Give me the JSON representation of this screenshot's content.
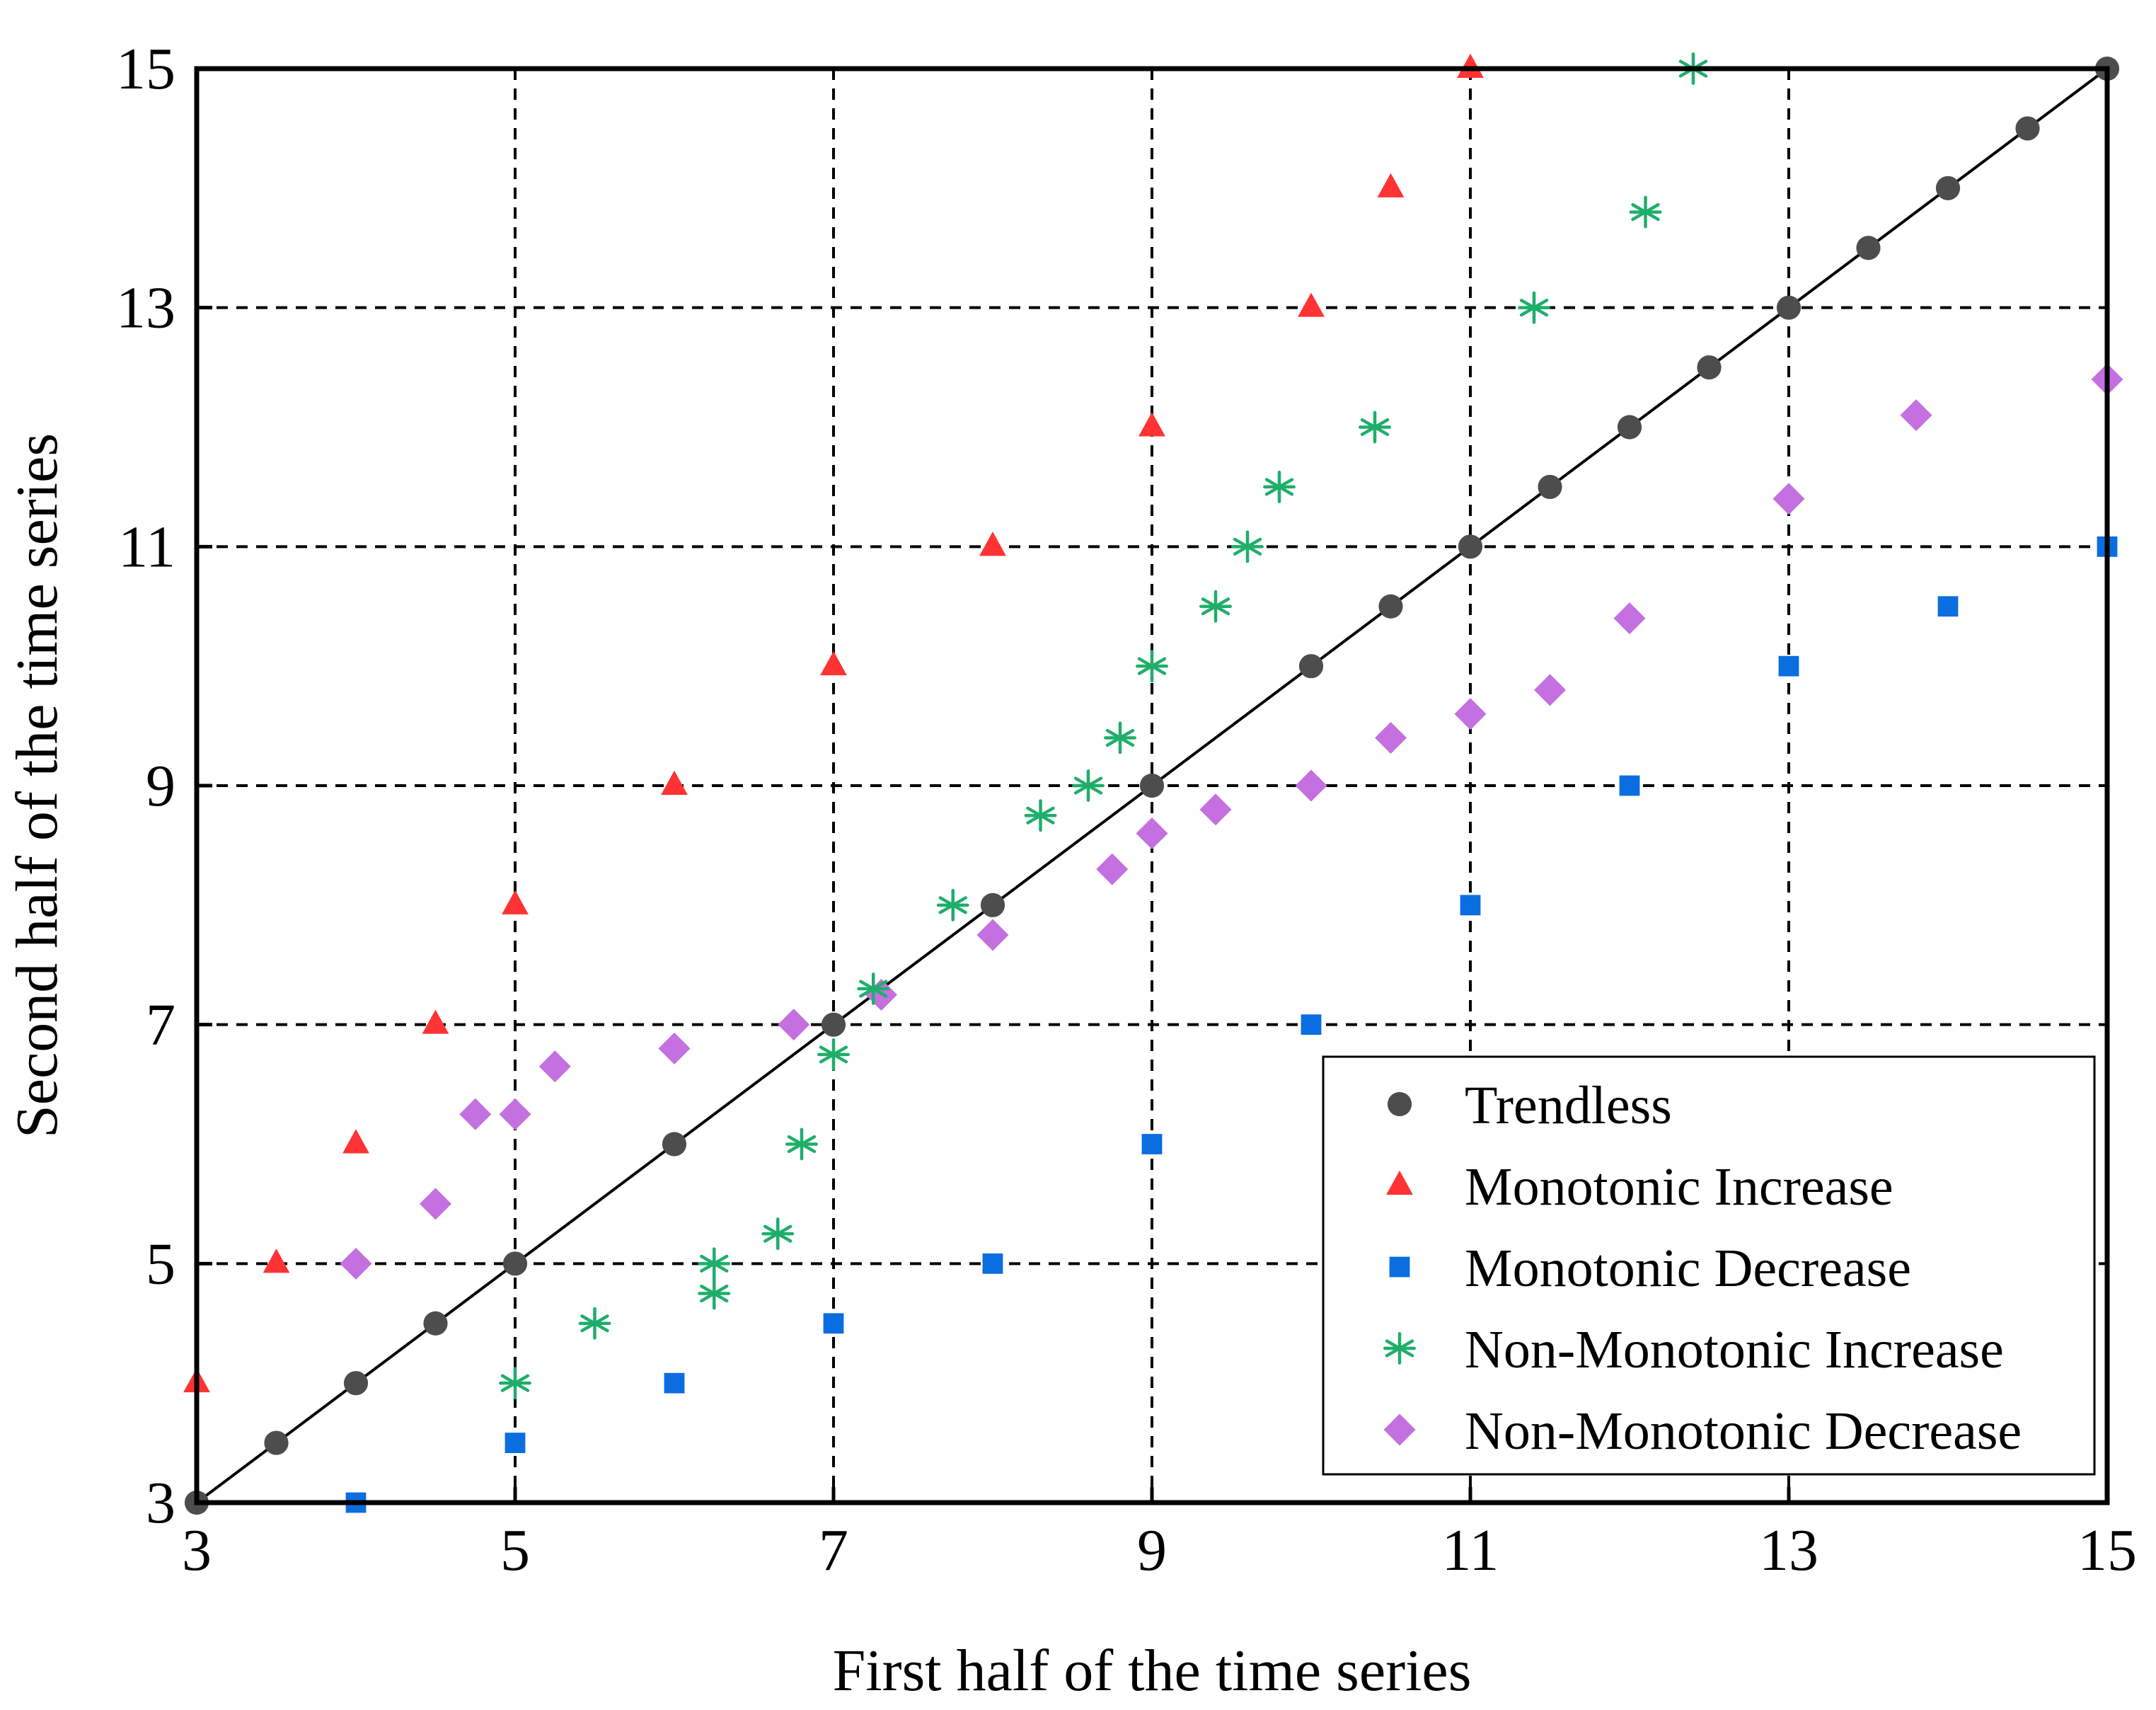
{
  "chart_data": {
    "type": "scatter",
    "title": "",
    "xlabel": "First half of the time series",
    "ylabel": "Second half of the time series",
    "xlim": [
      3,
      15
    ],
    "ylim": [
      3,
      15
    ],
    "xticks": [
      3,
      5,
      7,
      9,
      11,
      13,
      15
    ],
    "yticks": [
      3,
      5,
      7,
      9,
      11,
      13,
      15
    ],
    "grid": true,
    "grid_style": "dashed",
    "reference_line": {
      "from": [
        3,
        3
      ],
      "to": [
        15,
        15
      ]
    },
    "legend": {
      "position": "lower-right"
    },
    "series": [
      {
        "name": "Trendless",
        "marker": "circle",
        "color": "#4d4d4d",
        "points": [
          [
            3,
            3
          ],
          [
            3.5,
            3.5
          ],
          [
            4,
            4
          ],
          [
            4.5,
            4.5
          ],
          [
            5,
            5
          ],
          [
            6,
            6
          ],
          [
            7,
            7
          ],
          [
            8,
            8
          ],
          [
            9,
            9
          ],
          [
            10,
            10
          ],
          [
            10.5,
            10.5
          ],
          [
            11,
            11
          ],
          [
            11.5,
            11.5
          ],
          [
            12,
            12
          ],
          [
            12.5,
            12.5
          ],
          [
            13,
            13
          ],
          [
            13.5,
            13.5
          ],
          [
            14,
            14
          ],
          [
            14.5,
            14.5
          ],
          [
            15,
            15
          ]
        ]
      },
      {
        "name": "Monotonic Increase",
        "marker": "triangle",
        "color": "#ff3333",
        "points": [
          [
            3,
            4
          ],
          [
            3.5,
            5
          ],
          [
            4,
            6
          ],
          [
            4.5,
            7
          ],
          [
            5,
            8
          ],
          [
            6,
            9
          ],
          [
            7,
            10
          ],
          [
            8,
            11
          ],
          [
            9,
            12
          ],
          [
            10,
            13
          ],
          [
            10.5,
            14
          ],
          [
            11,
            15
          ]
        ]
      },
      {
        "name": "Monotonic Decrease",
        "marker": "square",
        "color": "#0a6ee0",
        "points": [
          [
            4,
            3
          ],
          [
            5,
            3.5
          ],
          [
            6,
            4
          ],
          [
            7,
            4.5
          ],
          [
            8,
            5
          ],
          [
            9,
            6
          ],
          [
            10,
            7
          ],
          [
            11,
            8
          ],
          [
            12,
            9
          ],
          [
            13,
            10
          ],
          [
            14,
            10.5
          ],
          [
            15,
            11
          ]
        ]
      },
      {
        "name": "Non-Monotonic Increase",
        "marker": "asterisk",
        "color": "#1fae6a",
        "points": [
          [
            5,
            4
          ],
          [
            5.5,
            4.5
          ],
          [
            6.25,
            5
          ],
          [
            6.25,
            4.75
          ],
          [
            6.65,
            5.25
          ],
          [
            6.8,
            6
          ],
          [
            7,
            6.75
          ],
          [
            7.25,
            7.3
          ],
          [
            7.75,
            8
          ],
          [
            8.3,
            8.75
          ],
          [
            8.6,
            9
          ],
          [
            8.8,
            9.4
          ],
          [
            9,
            10
          ],
          [
            9.4,
            10.5
          ],
          [
            9.6,
            11
          ],
          [
            9.8,
            11.5
          ],
          [
            10.4,
            12
          ],
          [
            11.4,
            13
          ],
          [
            12.1,
            13.8
          ],
          [
            12.4,
            15
          ]
        ]
      },
      {
        "name": "Non-Monotonic Decrease",
        "marker": "diamond",
        "color": "#c470e0",
        "points": [
          [
            4,
            5
          ],
          [
            4.5,
            5.5
          ],
          [
            4.75,
            6.25
          ],
          [
            5,
            6.25
          ],
          [
            5.25,
            6.65
          ],
          [
            6,
            6.8
          ],
          [
            6.75,
            7
          ],
          [
            7.3,
            7.25
          ],
          [
            8,
            7.75
          ],
          [
            8.75,
            8.3
          ],
          [
            9,
            8.6
          ],
          [
            9.4,
            8.8
          ],
          [
            10,
            9
          ],
          [
            10.5,
            9.4
          ],
          [
            11,
            9.6
          ],
          [
            11.5,
            9.8
          ],
          [
            12,
            10.4
          ],
          [
            13,
            11.4
          ],
          [
            13.8,
            12.1
          ],
          [
            15,
            12.4
          ]
        ]
      }
    ]
  }
}
